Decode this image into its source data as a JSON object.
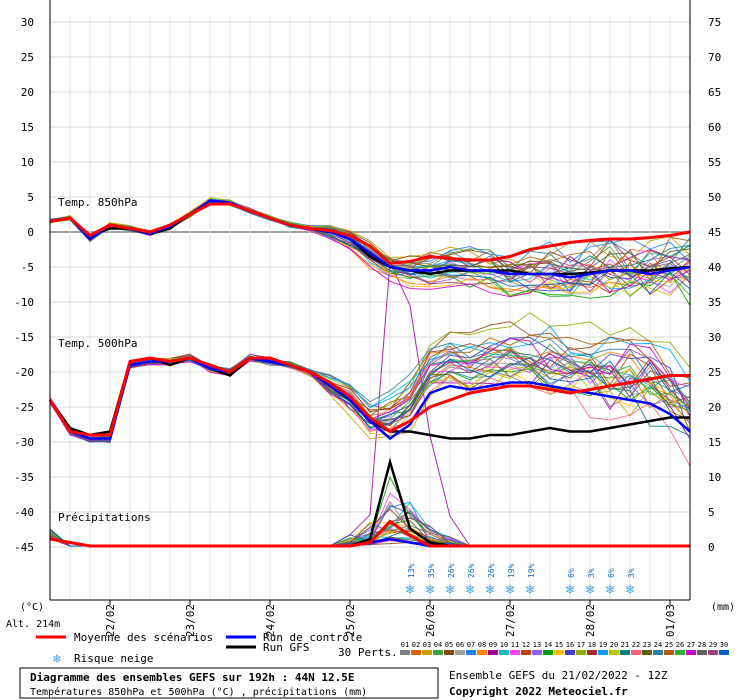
{
  "chart_data": {
    "type": "line",
    "title": "Diagramme des ensembles GEFS sur 192h : 44N 12.5E",
    "subtitle": "Températures 850hPa et 500hPa (°C) , précipitations (mm)",
    "run_info": "Ensemble GEFS du 21/02/2022 - 12Z",
    "copyright": "Copyright 2022 Meteociel.fr",
    "left_axis": {
      "unit": "(°C)",
      "ticks": [
        30,
        25,
        20,
        15,
        10,
        5,
        0,
        -5,
        -10,
        -15,
        -20,
        -25,
        -30,
        -35,
        -40,
        -45
      ]
    },
    "right_axis": {
      "unit": "(mm)",
      "ticks": [
        75,
        70,
        65,
        60,
        55,
        50,
        45,
        40,
        35,
        30,
        25,
        20,
        15,
        10,
        5,
        0
      ]
    },
    "altitude": "Alt. 214m",
    "x_ticks": [
      "22/02",
      "23/02",
      "24/02",
      "25/02",
      "26/02",
      "27/02",
      "28/02",
      "01/03"
    ],
    "x_steps_hours": [
      0,
      6,
      12,
      18,
      24,
      30,
      36,
      42,
      48,
      54,
      60,
      66,
      72,
      78,
      84,
      90,
      96,
      102,
      108,
      114,
      120,
      126,
      132,
      138,
      144,
      150,
      156,
      162,
      168,
      174,
      180,
      186,
      192
    ],
    "section_labels": {
      "t850": "Temp. 850hPa",
      "t500": "Temp. 500hPa",
      "precip": "Précipitations"
    },
    "snow_risk": [
      "13%",
      "35%",
      "26%",
      "26%",
      "26%",
      "19%",
      "19%",
      "6%",
      "3%",
      "6%",
      "3%"
    ],
    "snow_risk_hours": [
      108,
      114,
      120,
      126,
      132,
      138,
      144,
      156,
      162,
      168,
      174
    ],
    "series": [
      {
        "name": "Moyenne des scénarios",
        "color": "#ff0000",
        "t850": [
          1.5,
          2.0,
          -0.5,
          1.0,
          0.5,
          0.0,
          1.0,
          2.5,
          4.0,
          4.0,
          3.0,
          2.0,
          1.0,
          0.5,
          0.2,
          -0.5,
          -2.0,
          -4.5,
          -4.2,
          -3.5,
          -3.8,
          -4.0,
          -4.0,
          -3.5,
          -2.5,
          -2.0,
          -1.5,
          -1.2,
          -1.0,
          -1.0,
          -0.8,
          -0.5,
          0.0
        ],
        "t500": [
          -24.0,
          -28.5,
          -29.0,
          -29.0,
          -18.5,
          -18.0,
          -18.5,
          -18.0,
          -19.0,
          -20.0,
          -18.0,
          -18.0,
          -19.0,
          -20.0,
          -21.5,
          -23.5,
          -26.5,
          -28.5,
          -27.0,
          -25.0,
          -24.0,
          -23.0,
          -22.5,
          -22.0,
          -22.0,
          -22.5,
          -23.0,
          -22.5,
          -22.0,
          -21.5,
          -21.0,
          -20.5,
          -20.5
        ],
        "precip": [
          1.0,
          0.5,
          0,
          0,
          0,
          0,
          0,
          0,
          0,
          0,
          0,
          0,
          0,
          0,
          0,
          0,
          0.5,
          3.5,
          1.5,
          0,
          0,
          0,
          0,
          0,
          0,
          0,
          0,
          0,
          0,
          0,
          0,
          0,
          0
        ]
      },
      {
        "name": "Run de contrôle",
        "color": "#0000ff",
        "t850": [
          1.5,
          2.0,
          -1.0,
          1.0,
          0.5,
          -0.2,
          0.8,
          2.5,
          4.5,
          4.2,
          3.0,
          2.0,
          1.0,
          0.5,
          0.0,
          -1.0,
          -3.0,
          -5.0,
          -5.5,
          -5.5,
          -5.0,
          -5.5,
          -5.5,
          -6.0,
          -6.0,
          -6.0,
          -6.5,
          -6.0,
          -5.5,
          -5.5,
          -6.0,
          -5.5,
          -5.0
        ],
        "t500": [
          -24.0,
          -28.5,
          -29.5,
          -29.5,
          -19.0,
          -18.5,
          -18.5,
          -18.0,
          -19.5,
          -20.0,
          -18.0,
          -18.5,
          -19.0,
          -20.0,
          -22.0,
          -24.0,
          -27.0,
          -29.5,
          -27.5,
          -23.0,
          -22.0,
          -22.5,
          -22.0,
          -21.5,
          -21.5,
          -22.0,
          -22.5,
          -23.0,
          -23.5,
          -24.0,
          -24.5,
          -26.0,
          -28.5
        ],
        "precip": [
          1.0,
          0.5,
          0,
          0,
          0,
          0,
          0,
          0,
          0,
          0,
          0,
          0,
          0,
          0,
          0,
          0,
          0.5,
          1.0,
          0.5,
          0,
          0,
          0,
          0,
          0,
          0,
          0,
          0,
          0,
          0,
          0,
          0,
          0,
          0
        ]
      },
      {
        "name": "Run GFS",
        "color": "#000000",
        "t850": [
          1.5,
          2.0,
          -0.5,
          0.5,
          0.5,
          -0.3,
          0.5,
          2.5,
          4.0,
          4.0,
          3.0,
          2.0,
          1.0,
          0.5,
          0.0,
          -1.0,
          -3.5,
          -5.0,
          -5.5,
          -6.0,
          -5.5,
          -5.5,
          -5.5,
          -5.5,
          -6.0,
          -6.0,
          -6.0,
          -5.8,
          -5.5,
          -5.5,
          -5.5,
          -5.2,
          -5.0
        ],
        "t500": [
          -24.0,
          -28.0,
          -29.0,
          -28.5,
          -18.5,
          -18.0,
          -19.0,
          -18.0,
          -19.5,
          -20.5,
          -18.0,
          -18.5,
          -19.0,
          -20.0,
          -21.5,
          -23.5,
          -27.0,
          -28.5,
          -28.5,
          -29.0,
          -29.5,
          -29.5,
          -29.0,
          -29.0,
          -28.5,
          -28.0,
          -28.5,
          -28.5,
          -28.0,
          -27.5,
          -27.0,
          -26.5,
          -26.5
        ],
        "precip": [
          1.0,
          0.5,
          0,
          0,
          0,
          0,
          0,
          0,
          0,
          0,
          0,
          0,
          0,
          0,
          0,
          0,
          1.0,
          12.0,
          2.5,
          0.5,
          0,
          0,
          0,
          0,
          0,
          0,
          0,
          0,
          0,
          0,
          0,
          0,
          0
        ]
      }
    ],
    "perturbations": {
      "label": "30 Perts.",
      "ids": [
        "01",
        "02",
        "03",
        "04",
        "05",
        "06",
        "07",
        "08",
        "09",
        "10",
        "11",
        "12",
        "13",
        "14",
        "15",
        "16",
        "17",
        "18",
        "19",
        "20",
        "21",
        "22",
        "23",
        "24",
        "25",
        "26",
        "27",
        "28",
        "29",
        "30"
      ],
      "colors": [
        "#808080",
        "#e06000",
        "#c8a000",
        "#40a040",
        "#8b4513",
        "#a0a0a0",
        "#2080ff",
        "#ff8000",
        "#a000a0",
        "#00c0c0",
        "#ff40ff",
        "#c04000",
        "#9060ff",
        "#00a000",
        "#ffc000",
        "#4040c0",
        "#90b000",
        "#a03030",
        "#00a0ff",
        "#c0c000",
        "#008080",
        "#ff6080",
        "#606000",
        "#3080a0",
        "#b06000",
        "#30b030",
        "#d000d0",
        "#606060",
        "#a04080",
        "#0060c0"
      ]
    },
    "snow_icon": "snowflake-icon",
    "legend": {
      "snow_label": "Risque neige"
    }
  }
}
